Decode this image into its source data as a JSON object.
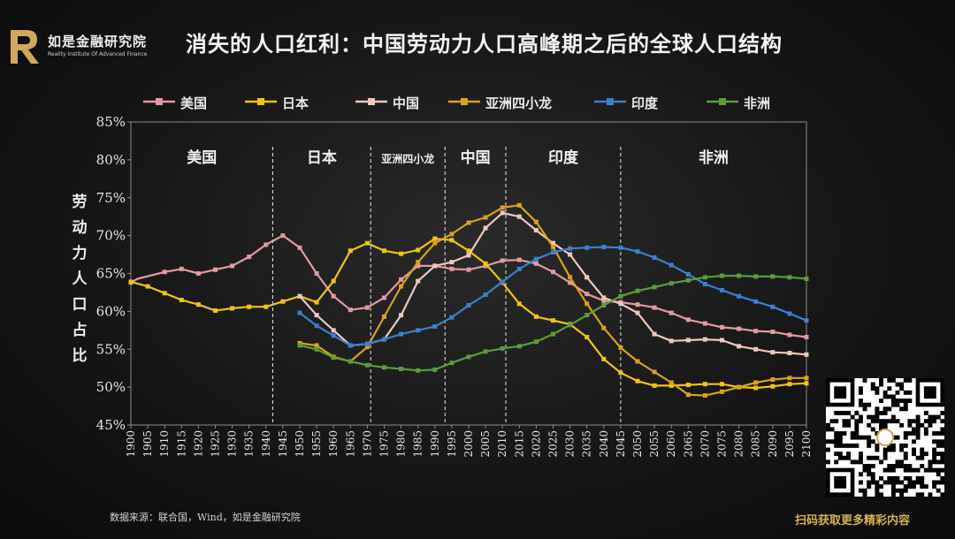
{
  "brand": {
    "name": "如是金融研究院",
    "subtitle": "Reality Institute Of Advanced Finance",
    "color": "#d1a85a"
  },
  "title": "消失的人口红利：中国劳动力人口高峰期之后的全球人口结构",
  "source": "数据来源：联合国，Wind，如是金融研究院",
  "qr_caption": "扫码获取更多精彩内容",
  "chart_data": {
    "type": "line",
    "ylabel": "劳动力人口占比",
    "ylim": [
      45,
      85
    ],
    "y_ticks": [
      "45%",
      "50%",
      "55%",
      "60%",
      "65%",
      "70%",
      "75%",
      "80%",
      "85%"
    ],
    "xlim": [
      1900,
      2100
    ],
    "x_ticks": [
      "1900",
      "1905",
      "1910",
      "1915",
      "1920",
      "1925",
      "1930",
      "1935",
      "1940",
      "1945",
      "1950",
      "1955",
      "1960",
      "1965",
      "1970",
      "1975",
      "1980",
      "1985",
      "1990",
      "1995",
      "2000",
      "2005",
      "2010",
      "2015",
      "2020",
      "2025",
      "2030",
      "2035",
      "2040",
      "2045",
      "2050",
      "2055",
      "2060",
      "2065",
      "2070",
      "2075",
      "2080",
      "2085",
      "2090",
      "2095",
      "2100"
    ],
    "grid": false,
    "legend_position": "top",
    "series": [
      {
        "name": "美国",
        "color": "#e39aa0",
        "points": [
          [
            1900,
            63.8
          ],
          [
            1902,
            64.3
          ],
          [
            1910,
            65.2
          ],
          [
            1915,
            65.6
          ],
          [
            1920,
            65.0
          ],
          [
            1925,
            65.5
          ],
          [
            1930,
            66.0
          ],
          [
            1935,
            67.2
          ],
          [
            1940,
            68.8
          ],
          [
            1945,
            70.0
          ],
          [
            1950,
            68.4
          ],
          [
            1955,
            65.0
          ],
          [
            1960,
            62.0
          ],
          [
            1965,
            60.2
          ],
          [
            1970,
            60.5
          ],
          [
            1975,
            61.8
          ],
          [
            1980,
            64.2
          ],
          [
            1985,
            66.0
          ],
          [
            1990,
            66.0
          ],
          [
            1995,
            65.6
          ],
          [
            2000,
            65.5
          ],
          [
            2005,
            66.0
          ],
          [
            2010,
            66.7
          ],
          [
            2015,
            66.8
          ],
          [
            2020,
            66.3
          ],
          [
            2025,
            65.2
          ],
          [
            2030,
            63.8
          ],
          [
            2035,
            62.3
          ],
          [
            2040,
            61.4
          ],
          [
            2045,
            61.2
          ],
          [
            2050,
            60.9
          ],
          [
            2055,
            60.5
          ],
          [
            2060,
            59.8
          ],
          [
            2065,
            58.9
          ],
          [
            2070,
            58.4
          ],
          [
            2075,
            57.9
          ],
          [
            2080,
            57.7
          ],
          [
            2085,
            57.4
          ],
          [
            2090,
            57.3
          ],
          [
            2095,
            56.9
          ],
          [
            2100,
            56.6
          ]
        ]
      },
      {
        "name": "日本",
        "color": "#f2c412",
        "points": [
          [
            1900,
            63.9
          ],
          [
            1905,
            63.3
          ],
          [
            1910,
            62.4
          ],
          [
            1915,
            61.5
          ],
          [
            1920,
            60.9
          ],
          [
            1925,
            60.1
          ],
          [
            1930,
            60.4
          ],
          [
            1935,
            60.6
          ],
          [
            1940,
            60.6
          ],
          [
            1945,
            61.3
          ],
          [
            1950,
            62.0
          ],
          [
            1955,
            61.2
          ],
          [
            1960,
            64.0
          ],
          [
            1965,
            68.0
          ],
          [
            1970,
            69.0
          ],
          [
            1975,
            68.0
          ],
          [
            1980,
            67.6
          ],
          [
            1985,
            68.1
          ],
          [
            1990,
            69.6
          ],
          [
            1995,
            69.4
          ],
          [
            2000,
            68.0
          ],
          [
            2005,
            66.3
          ],
          [
            2010,
            63.8
          ],
          [
            2015,
            61.0
          ],
          [
            2020,
            59.3
          ],
          [
            2025,
            58.8
          ],
          [
            2030,
            58.3
          ],
          [
            2035,
            56.6
          ],
          [
            2040,
            53.7
          ],
          [
            2045,
            51.9
          ],
          [
            2050,
            50.8
          ],
          [
            2055,
            50.2
          ],
          [
            2060,
            50.2
          ],
          [
            2065,
            50.3
          ],
          [
            2070,
            50.4
          ],
          [
            2075,
            50.4
          ],
          [
            2080,
            50.0
          ],
          [
            2085,
            49.9
          ],
          [
            2090,
            50.1
          ],
          [
            2095,
            50.4
          ],
          [
            2100,
            50.5
          ]
        ]
      },
      {
        "name": "中国",
        "color": "#f0c8bb",
        "points": [
          [
            1950,
            62.0
          ],
          [
            1955,
            59.5
          ],
          [
            1960,
            57.5
          ],
          [
            1965,
            55.5
          ],
          [
            1970,
            55.7
          ],
          [
            1975,
            56.3
          ],
          [
            1980,
            59.5
          ],
          [
            1985,
            64.0
          ],
          [
            1990,
            66.0
          ],
          [
            1995,
            66.5
          ],
          [
            2000,
            67.4
          ],
          [
            2005,
            71.0
          ],
          [
            2010,
            73.0
          ],
          [
            2015,
            72.5
          ],
          [
            2020,
            70.7
          ],
          [
            2025,
            69.0
          ],
          [
            2030,
            67.5
          ],
          [
            2035,
            64.5
          ],
          [
            2040,
            61.8
          ],
          [
            2045,
            61.0
          ],
          [
            2050,
            59.8
          ],
          [
            2055,
            57.0
          ],
          [
            2060,
            56.1
          ],
          [
            2065,
            56.2
          ],
          [
            2070,
            56.3
          ],
          [
            2075,
            56.2
          ],
          [
            2080,
            55.4
          ],
          [
            2085,
            55.0
          ],
          [
            2090,
            54.6
          ],
          [
            2095,
            54.5
          ],
          [
            2100,
            54.3
          ]
        ]
      },
      {
        "name": "亚洲四小龙",
        "color": "#d9a21d",
        "points": [
          [
            1950,
            55.8
          ],
          [
            1955,
            55.5
          ],
          [
            1960,
            54.0
          ],
          [
            1965,
            53.4
          ],
          [
            1970,
            55.3
          ],
          [
            1975,
            59.3
          ],
          [
            1980,
            63.3
          ],
          [
            1985,
            66.5
          ],
          [
            1990,
            69.0
          ],
          [
            1995,
            70.2
          ],
          [
            2000,
            71.7
          ],
          [
            2005,
            72.4
          ],
          [
            2010,
            73.7
          ],
          [
            2015,
            74.0
          ],
          [
            2020,
            71.8
          ],
          [
            2025,
            68.5
          ],
          [
            2030,
            64.5
          ],
          [
            2035,
            61.0
          ],
          [
            2040,
            57.8
          ],
          [
            2045,
            55.2
          ],
          [
            2050,
            53.4
          ],
          [
            2055,
            52.0
          ],
          [
            2060,
            50.6
          ],
          [
            2065,
            49.0
          ],
          [
            2070,
            48.9
          ],
          [
            2075,
            49.4
          ],
          [
            2080,
            50.0
          ],
          [
            2085,
            50.6
          ],
          [
            2090,
            51.0
          ],
          [
            2095,
            51.2
          ],
          [
            2100,
            51.2
          ]
        ]
      },
      {
        "name": "印度",
        "color": "#3d7fd0",
        "points": [
          [
            1950,
            59.8
          ],
          [
            1955,
            58.1
          ],
          [
            1960,
            56.8
          ],
          [
            1965,
            55.5
          ],
          [
            1970,
            55.7
          ],
          [
            1975,
            56.3
          ],
          [
            1980,
            57.0
          ],
          [
            1985,
            57.5
          ],
          [
            1990,
            58.0
          ],
          [
            1995,
            59.2
          ],
          [
            2000,
            60.8
          ],
          [
            2005,
            62.2
          ],
          [
            2010,
            63.9
          ],
          [
            2015,
            65.6
          ],
          [
            2020,
            66.9
          ],
          [
            2025,
            67.8
          ],
          [
            2030,
            68.3
          ],
          [
            2035,
            68.4
          ],
          [
            2040,
            68.5
          ],
          [
            2045,
            68.4
          ],
          [
            2050,
            67.9
          ],
          [
            2055,
            67.1
          ],
          [
            2060,
            66.1
          ],
          [
            2065,
            64.9
          ],
          [
            2070,
            63.6
          ],
          [
            2075,
            62.8
          ],
          [
            2080,
            62.0
          ],
          [
            2085,
            61.3
          ],
          [
            2090,
            60.6
          ],
          [
            2095,
            59.7
          ],
          [
            2100,
            58.8
          ]
        ]
      },
      {
        "name": "非洲",
        "color": "#5c9c3d",
        "points": [
          [
            1950,
            55.5
          ],
          [
            1955,
            55.0
          ],
          [
            1960,
            53.9
          ],
          [
            1965,
            53.4
          ],
          [
            1970,
            52.9
          ],
          [
            1975,
            52.6
          ],
          [
            1980,
            52.4
          ],
          [
            1985,
            52.2
          ],
          [
            1990,
            52.3
          ],
          [
            1995,
            53.2
          ],
          [
            2000,
            54.0
          ],
          [
            2005,
            54.7
          ],
          [
            2010,
            55.1
          ],
          [
            2015,
            55.4
          ],
          [
            2020,
            56.0
          ],
          [
            2025,
            57.0
          ],
          [
            2030,
            58.2
          ],
          [
            2035,
            59.5
          ],
          [
            2040,
            60.8
          ],
          [
            2045,
            62.0
          ],
          [
            2050,
            62.7
          ],
          [
            2055,
            63.2
          ],
          [
            2060,
            63.7
          ],
          [
            2065,
            64.1
          ],
          [
            2070,
            64.5
          ],
          [
            2075,
            64.7
          ],
          [
            2080,
            64.7
          ],
          [
            2085,
            64.6
          ],
          [
            2090,
            64.6
          ],
          [
            2095,
            64.5
          ],
          [
            2100,
            64.3
          ]
        ]
      }
    ],
    "region_markers": [
      {
        "label": "美国",
        "start": 1900,
        "end": 1942
      },
      {
        "label": "日本",
        "start": 1942,
        "end": 1971
      },
      {
        "label": "亚洲四小龙",
        "start": 1971,
        "end": 1993
      },
      {
        "label": "中国",
        "start": 1993,
        "end": 2011
      },
      {
        "label": "印度",
        "start": 2011,
        "end": 2045
      },
      {
        "label": "非洲",
        "start": 2045,
        "end": 2100
      }
    ]
  }
}
